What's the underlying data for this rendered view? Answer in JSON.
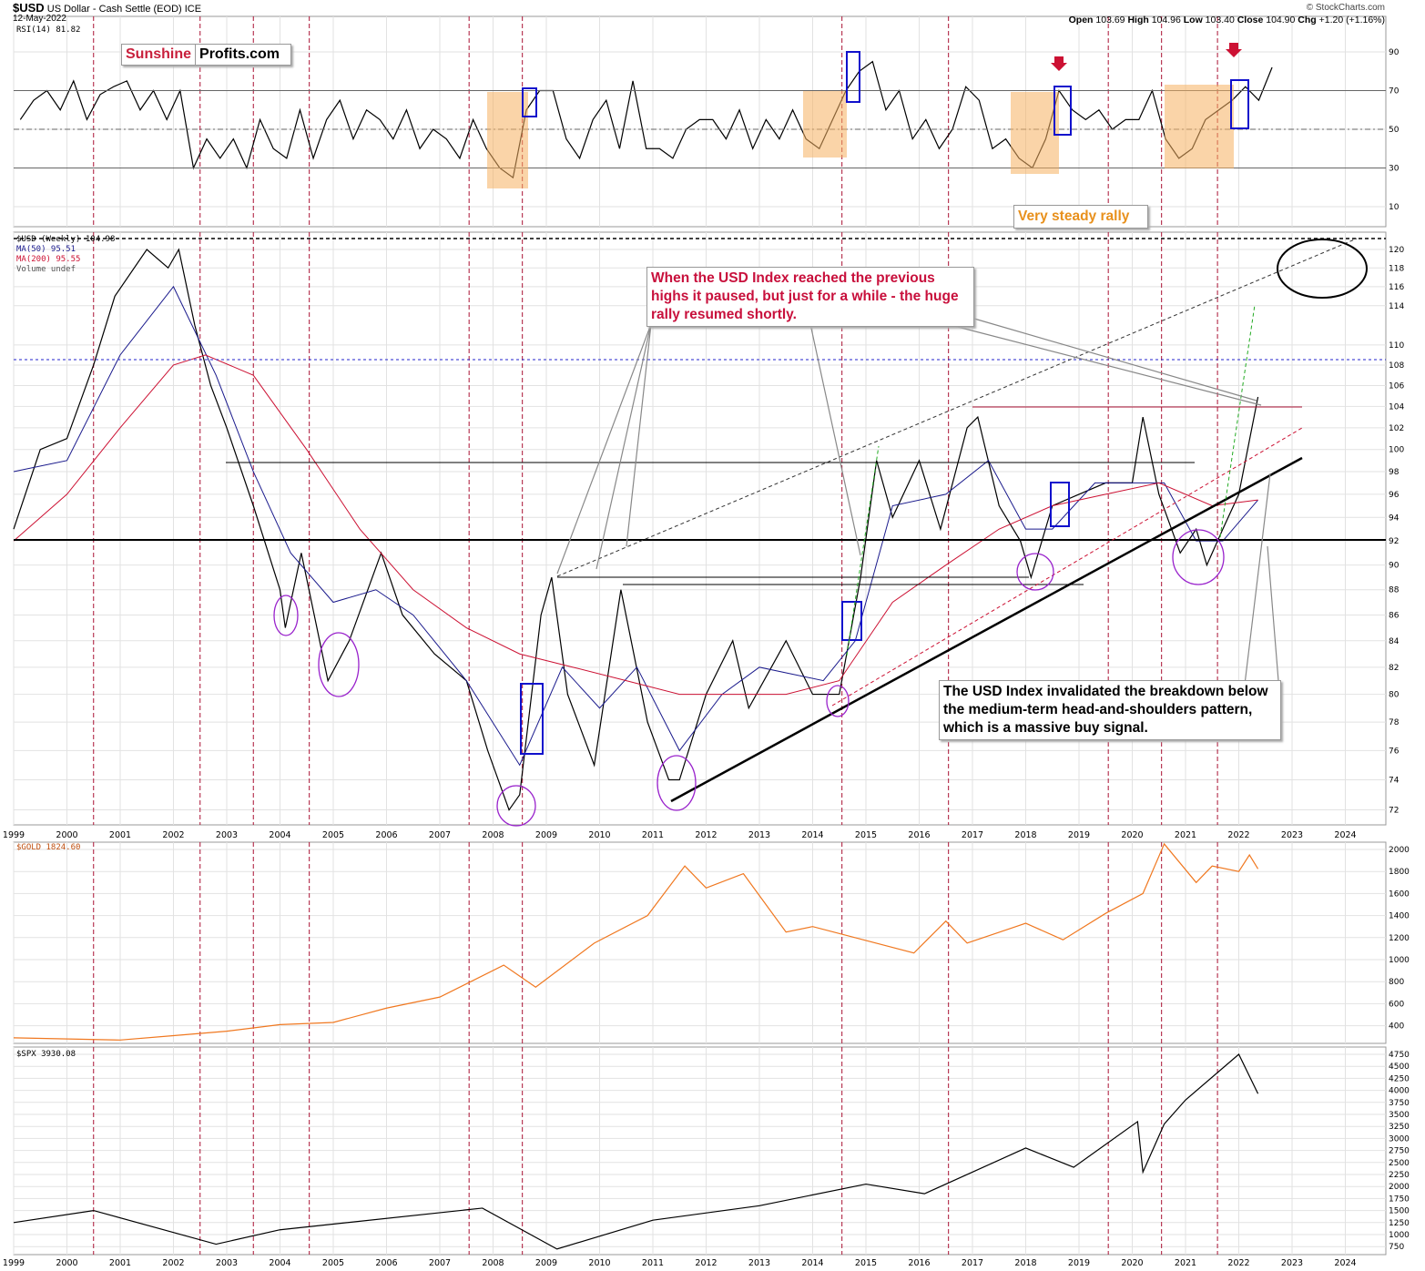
{
  "header": {
    "symbol": "$USD",
    "name": "US Dollar - Cash Settle (EOD)",
    "exchange": "ICE",
    "date": "12-May-2022",
    "ohlc": [
      {
        "label": "Open",
        "value": "103.69"
      },
      {
        "label": "High",
        "value": "104.96"
      },
      {
        "label": "Low",
        "value": "103.40"
      },
      {
        "label": "Close",
        "value": "104.90"
      },
      {
        "label": "Chg",
        "value": "+1.20 (+1.16%)"
      }
    ],
    "source": "© StockCharts.com"
  },
  "logo": {
    "part1": "Sunshine",
    "part2": "Profits.com"
  },
  "annotations": {
    "very_steady": "Very steady rally",
    "callout1": "When the USD Index reached the previous highs it paused, but just for a while - the huge rally resumed shortly.",
    "callout2": "The USD Index invalidated the breakdown below the medium-term head-and-shoulders pattern, which is a massive buy signal."
  },
  "colors": {
    "usd": "#000000",
    "ma50": "#1a1a8c",
    "ma200": "#cc1133",
    "gold": "#f07820",
    "spx": "#000000",
    "event": "#aa1133"
  },
  "chart_data": [
    {
      "type": "line",
      "title": "RSI(14) 81.82",
      "ylim": [
        0,
        100
      ],
      "yticks": [
        10,
        30,
        50,
        70,
        90
      ],
      "series": [
        {
          "name": "RSI(14)",
          "start": 1999.125,
          "step": 0.25,
          "values": [
            55,
            65,
            70,
            60,
            75,
            55,
            68,
            72,
            75,
            60,
            70,
            55,
            70,
            30,
            45,
            35,
            45,
            30,
            55,
            40,
            35,
            60,
            35,
            55,
            65,
            45,
            60,
            55,
            45,
            60,
            40,
            50,
            45,
            35,
            55,
            40,
            30,
            25,
            60,
            70,
            70,
            45,
            35,
            55,
            65,
            40,
            75,
            40,
            40,
            35,
            50,
            55,
            55,
            45,
            60,
            40,
            55,
            45,
            60,
            45,
            40,
            55,
            70,
            80,
            85,
            60,
            70,
            45,
            55,
            40,
            50,
            72,
            65,
            40,
            45,
            35,
            30,
            45,
            70,
            60,
            55,
            60,
            50,
            55,
            55,
            70,
            45,
            35,
            40,
            55,
            60,
            65,
            72,
            65,
            82
          ]
        }
      ]
    },
    {
      "type": "line",
      "title": "$USD (Weekly) 104.98",
      "scale": "log",
      "yticks": [
        72,
        74,
        76,
        78,
        80,
        82,
        84,
        86,
        88,
        90,
        92,
        94,
        96,
        98,
        100,
        102,
        104,
        106,
        108,
        110,
        114,
        116,
        118,
        120
      ],
      "legend": [
        "MA(50) 95.51",
        "MA(200) 95.55",
        "Volume undef"
      ],
      "series": [
        {
          "name": "$USD",
          "points": [
            [
              1999,
              93
            ],
            [
              1999.5,
              100
            ],
            [
              2000,
              101
            ],
            [
              2000.5,
              108
            ],
            [
              2000.9,
              115
            ],
            [
              2001.5,
              120
            ],
            [
              2001.9,
              118
            ],
            [
              2002.1,
              120
            ],
            [
              2002.4,
              112
            ],
            [
              2002.7,
              106
            ],
            [
              2003,
              102
            ],
            [
              2003.5,
              95
            ],
            [
              2004,
              88
            ],
            [
              2004.1,
              85
            ],
            [
              2004.4,
              91
            ],
            [
              2004.9,
              81
            ],
            [
              2005.3,
              84
            ],
            [
              2005.9,
              91
            ],
            [
              2006.3,
              86
            ],
            [
              2006.9,
              83
            ],
            [
              2007.5,
              81
            ],
            [
              2007.9,
              76
            ],
            [
              2008.3,
              72
            ],
            [
              2008.5,
              73
            ],
            [
              2008.9,
              86
            ],
            [
              2009.1,
              89
            ],
            [
              2009.4,
              80
            ],
            [
              2009.9,
              75
            ],
            [
              2010.4,
              88
            ],
            [
              2010.9,
              78
            ],
            [
              2011.3,
              74
            ],
            [
              2011.5,
              74
            ],
            [
              2012,
              80
            ],
            [
              2012.5,
              84
            ],
            [
              2012.8,
              79
            ],
            [
              2013.5,
              84
            ],
            [
              2014,
              80
            ],
            [
              2014.5,
              80
            ],
            [
              2014.9,
              89
            ],
            [
              2015.2,
              99
            ],
            [
              2015.5,
              94
            ],
            [
              2016,
              99
            ],
            [
              2016.4,
              93
            ],
            [
              2016.9,
              102
            ],
            [
              2017.1,
              103
            ],
            [
              2017.5,
              95
            ],
            [
              2017.9,
              92
            ],
            [
              2018.1,
              89
            ],
            [
              2018.5,
              95
            ],
            [
              2019,
              96
            ],
            [
              2019.5,
              97
            ],
            [
              2020,
              97
            ],
            [
              2020.2,
              103
            ],
            [
              2020.5,
              96
            ],
            [
              2020.9,
              91
            ],
            [
              2021.2,
              93
            ],
            [
              2021.4,
              90
            ],
            [
              2021.7,
              93
            ],
            [
              2022,
              96
            ],
            [
              2022.36,
              104.9
            ]
          ]
        },
        {
          "name": "MA(50)",
          "points": [
            [
              1999,
              98
            ],
            [
              2000,
              99
            ],
            [
              2001,
              109
            ],
            [
              2002,
              116
            ],
            [
              2002.8,
              107
            ],
            [
              2003.5,
              98
            ],
            [
              2004.2,
              91
            ],
            [
              2005,
              87
            ],
            [
              2005.8,
              88
            ],
            [
              2006.5,
              86
            ],
            [
              2007.5,
              81
            ],
            [
              2008.5,
              75
            ],
            [
              2009.3,
              82
            ],
            [
              2010,
              79
            ],
            [
              2010.7,
              82
            ],
            [
              2011.5,
              76
            ],
            [
              2012.3,
              80
            ],
            [
              2013,
              82
            ],
            [
              2014.2,
              81
            ],
            [
              2014.8,
              84
            ],
            [
              2015.5,
              95
            ],
            [
              2016.5,
              96
            ],
            [
              2017.3,
              99
            ],
            [
              2018,
              93
            ],
            [
              2018.5,
              93
            ],
            [
              2019.3,
              97
            ],
            [
              2020,
              97
            ],
            [
              2020.6,
              97
            ],
            [
              2021.2,
              92
            ],
            [
              2021.7,
              92
            ],
            [
              2022.36,
              95.5
            ]
          ]
        },
        {
          "name": "MA(200)",
          "points": [
            [
              1999,
              92
            ],
            [
              2000,
              96
            ],
            [
              2001,
              102
            ],
            [
              2002,
              108
            ],
            [
              2002.6,
              109
            ],
            [
              2003.5,
              107
            ],
            [
              2004.5,
              100
            ],
            [
              2005.5,
              93
            ],
            [
              2006.5,
              88
            ],
            [
              2007.5,
              85
            ],
            [
              2008.5,
              83
            ],
            [
              2009.5,
              82
            ],
            [
              2010.5,
              81
            ],
            [
              2011.5,
              80
            ],
            [
              2012.5,
              80
            ],
            [
              2013.5,
              80
            ],
            [
              2014.5,
              81
            ],
            [
              2015.5,
              87
            ],
            [
              2016.5,
              90
            ],
            [
              2017.5,
              93
            ],
            [
              2018.5,
              95
            ],
            [
              2019.5,
              96
            ],
            [
              2020.5,
              97
            ],
            [
              2021.5,
              95
            ],
            [
              2022.36,
              95.5
            ]
          ]
        }
      ]
    },
    {
      "type": "line",
      "title": "$GOLD 1824.60",
      "yticks": [
        400,
        600,
        800,
        1000,
        1200,
        1400,
        1600,
        1800,
        2000
      ],
      "series": [
        {
          "name": "$GOLD",
          "points": [
            [
              1999,
              290
            ],
            [
              2001,
              270
            ],
            [
              2002,
              310
            ],
            [
              2003,
              350
            ],
            [
              2004,
              410
            ],
            [
              2005,
              430
            ],
            [
              2006,
              560
            ],
            [
              2007,
              660
            ],
            [
              2008.2,
              950
            ],
            [
              2008.8,
              750
            ],
            [
              2009.9,
              1150
            ],
            [
              2010.9,
              1400
            ],
            [
              2011.6,
              1850
            ],
            [
              2012,
              1650
            ],
            [
              2012.7,
              1780
            ],
            [
              2013.5,
              1250
            ],
            [
              2014,
              1300
            ],
            [
              2015.9,
              1060
            ],
            [
              2016.5,
              1350
            ],
            [
              2016.9,
              1150
            ],
            [
              2018,
              1330
            ],
            [
              2018.7,
              1180
            ],
            [
              2019.5,
              1420
            ],
            [
              2020.2,
              1600
            ],
            [
              2020.6,
              2050
            ],
            [
              2021.2,
              1700
            ],
            [
              2021.5,
              1850
            ],
            [
              2022,
              1800
            ],
            [
              2022.2,
              1950
            ],
            [
              2022.36,
              1824
            ]
          ]
        }
      ]
    },
    {
      "type": "line",
      "title": "$SPX 3930.08",
      "yticks": [
        750,
        1000,
        1250,
        1500,
        1750,
        2000,
        2250,
        2500,
        2750,
        3000,
        3250,
        3500,
        3750,
        4000,
        4250,
        4500,
        4750
      ],
      "series": [
        {
          "name": "$SPX",
          "points": [
            [
              1999,
              1250
            ],
            [
              2000.5,
              1500
            ],
            [
              2002.8,
              800
            ],
            [
              2004,
              1100
            ],
            [
              2007.8,
              1550
            ],
            [
              2009.2,
              700
            ],
            [
              2011,
              1300
            ],
            [
              2013,
              1600
            ],
            [
              2015,
              2050
            ],
            [
              2016.1,
              1850
            ],
            [
              2018,
              2800
            ],
            [
              2018.9,
              2400
            ],
            [
              2020.1,
              3350
            ],
            [
              2020.2,
              2300
            ],
            [
              2020.6,
              3300
            ],
            [
              2021,
              3800
            ],
            [
              2022,
              4750
            ],
            [
              2022.36,
              3930
            ]
          ]
        }
      ]
    }
  ],
  "x_years": [
    "1999",
    "2000",
    "2001",
    "2002",
    "2003",
    "2004",
    "2005",
    "2006",
    "2007",
    "2008",
    "2009",
    "2010",
    "2011",
    "2012",
    "2013",
    "2014",
    "2015",
    "2016",
    "2017",
    "2018",
    "2019",
    "2020",
    "2021",
    "2022",
    "2023",
    "2024"
  ],
  "event_lines": [
    2000.5,
    2002.5,
    2003.5,
    2004.55,
    2007.55,
    2008.55,
    2014.55,
    2016.55,
    2019.55,
    2020.55,
    2021.6
  ]
}
